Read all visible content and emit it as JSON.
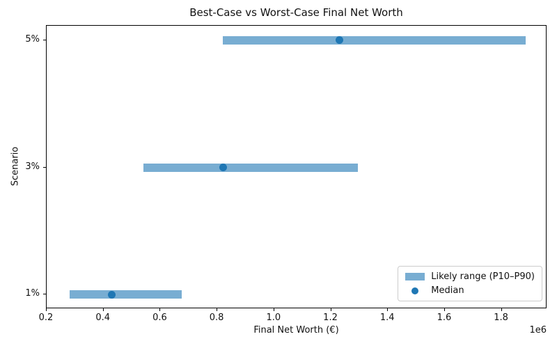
{
  "chart_data": {
    "type": "bar",
    "subtype": "horizontal-range-with-median",
    "title": "Best-Case vs Worst-Case Final Net Worth",
    "xlabel": "Final Net Worth (€)",
    "ylabel": "Scenario",
    "categories": [
      "1%",
      "3%",
      "5%"
    ],
    "series": [
      {
        "name": "Likely range (P10–P90)",
        "type": "range",
        "low": [
          280000,
          540000,
          820000
        ],
        "high": [
          675000,
          1295000,
          1885000
        ],
        "color": "#78add2"
      },
      {
        "name": "Median",
        "type": "scatter",
        "values": [
          430000,
          820000,
          1230000
        ],
        "color": "#1f77b4"
      }
    ],
    "xlim": [
      200000,
      1960000
    ],
    "ylim": [
      -0.115,
      2.115
    ],
    "xticks": [
      200000,
      400000,
      600000,
      800000,
      1000000,
      1200000,
      1400000,
      1600000,
      1800000
    ],
    "xtick_labels": [
      "0.2",
      "0.4",
      "0.6",
      "0.8",
      "1.0",
      "1.2",
      "1.4",
      "1.6",
      "1.8"
    ],
    "ytick_labels": [
      "1%",
      "3%",
      "5%"
    ],
    "axis_offset_label": "1e6",
    "grid": false,
    "legend": {
      "position": "lower right"
    }
  }
}
